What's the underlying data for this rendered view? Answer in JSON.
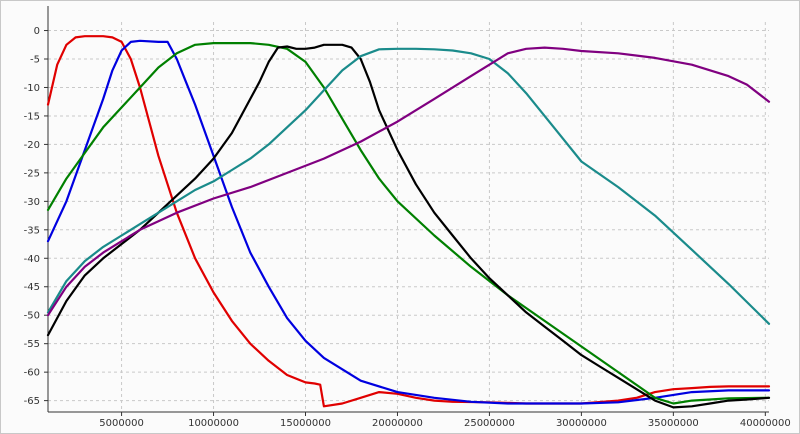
{
  "chart_data": {
    "type": "line",
    "title": "",
    "xlabel": "",
    "ylabel": "",
    "xlim": [
      1000000,
      40200000
    ],
    "ylim": [
      -67,
      1.5
    ],
    "grid": true,
    "legend": "none",
    "x_ticks": [
      5000000,
      10000000,
      15000000,
      20000000,
      25000000,
      30000000,
      35000000,
      40000000
    ],
    "x_tick_labels": [
      "5000000",
      "10000000",
      "15000000",
      "20000000",
      "25000000",
      "30000000",
      "35000000",
      "40000000"
    ],
    "y_ticks": [
      0,
      -5,
      -10,
      -15,
      -20,
      -25,
      -30,
      -35,
      -40,
      -45,
      -50,
      -55,
      -60,
      -65
    ],
    "y_tick_labels": [
      "0",
      "-5",
      "-10",
      "-15",
      "-20",
      "-25",
      "-30",
      "-35",
      "-40",
      "-45",
      "-50",
      "-55",
      "-60",
      "-65"
    ],
    "series": [
      {
        "color": "#e00000",
        "x": [
          1000000,
          1500000,
          2000000,
          2500000,
          3000000,
          3500000,
          4000000,
          4500000,
          5000000,
          5500000,
          6000000,
          6500000,
          7000000,
          7500000,
          8000000,
          9000000,
          10000000,
          11000000,
          12000000,
          13000000,
          14000000,
          15000000,
          15500000,
          15800000,
          16000000,
          17000000,
          18000000,
          19000000,
          20000000,
          21000000,
          22000000,
          23000000,
          25000000,
          27000000,
          30000000,
          32000000,
          33000000,
          34000000,
          35000000,
          36000000,
          37000000,
          38000000,
          39000000,
          40200000
        ],
        "y": [
          -13,
          -6,
          -2.5,
          -1.2,
          -1,
          -1,
          -1,
          -1.2,
          -2,
          -5,
          -10,
          -16,
          -22,
          -27,
          -32,
          -40,
          -46,
          -51,
          -55,
          -58,
          -60.5,
          -61.8,
          -62,
          -62.2,
          -66,
          -65.5,
          -64.5,
          -63.5,
          -63.8,
          -64.5,
          -65,
          -65.2,
          -65.3,
          -65.5,
          -65.5,
          -65,
          -64.5,
          -63.5,
          -63,
          -62.8,
          -62.6,
          -62.5,
          -62.5,
          -62.5
        ]
      },
      {
        "color": "#0000e0",
        "x": [
          1000000,
          2000000,
          3000000,
          4000000,
          4500000,
          5000000,
          5500000,
          6000000,
          7000000,
          7500000,
          8000000,
          8500000,
          9000000,
          10000000,
          11000000,
          12000000,
          13000000,
          14000000,
          15000000,
          16000000,
          17000000,
          18000000,
          20000000,
          22000000,
          24000000,
          26000000,
          28000000,
          30000000,
          32000000,
          34000000,
          36000000,
          38000000,
          40200000
        ],
        "y": [
          -37,
          -30,
          -21,
          -12,
          -7,
          -3.5,
          -2,
          -1.8,
          -2,
          -2,
          -5,
          -9,
          -13,
          -22,
          -31,
          -39,
          -45,
          -50.5,
          -54.5,
          -57.5,
          -59.5,
          -61.5,
          -63.5,
          -64.5,
          -65.2,
          -65.5,
          -65.5,
          -65.5,
          -65.3,
          -64.5,
          -63.5,
          -63.2,
          -63.2
        ]
      },
      {
        "color": "#008000",
        "x": [
          1000000,
          2000000,
          3000000,
          4000000,
          5000000,
          6000000,
          7000000,
          8000000,
          9000000,
          10000000,
          11000000,
          12000000,
          13000000,
          14000000,
          15000000,
          16000000,
          17000000,
          18000000,
          19000000,
          20000000,
          22000000,
          24000000,
          26000000,
          28000000,
          30000000,
          32000000,
          34000000,
          35000000,
          36000000,
          37000000,
          38000000,
          40200000
        ],
        "y": [
          -31.5,
          -26,
          -21.5,
          -17,
          -13.5,
          -10,
          -6.5,
          -4,
          -2.5,
          -2.2,
          -2.2,
          -2.2,
          -2.5,
          -3.2,
          -5.5,
          -10,
          -15.5,
          -21,
          -26,
          -30,
          -36,
          -41.5,
          -46.5,
          -51,
          -55.5,
          -60,
          -64.5,
          -65.5,
          -65,
          -64.8,
          -64.6,
          -64.5
        ]
      },
      {
        "color": "#000000",
        "x": [
          1000000,
          2000000,
          3000000,
          4000000,
          5000000,
          6000000,
          7000000,
          8000000,
          9000000,
          10000000,
          11000000,
          12000000,
          12500000,
          13000000,
          13500000,
          14000000,
          14500000,
          15000000,
          15500000,
          16000000,
          17000000,
          17500000,
          18000000,
          18500000,
          19000000,
          20000000,
          21000000,
          22000000,
          23000000,
          24000000,
          25000000,
          26000000,
          27000000,
          28000000,
          29000000,
          30000000,
          31000000,
          32000000,
          33000000,
          34000000,
          35000000,
          36000000,
          37000000,
          38000000,
          39000000,
          40200000
        ],
        "y": [
          -53.5,
          -47.5,
          -43,
          -40,
          -37.5,
          -35,
          -32,
          -29,
          -26,
          -22.5,
          -18,
          -12,
          -9,
          -5.5,
          -3,
          -2.8,
          -3.2,
          -3.2,
          -3,
          -2.5,
          -2.5,
          -3,
          -5,
          -9,
          -14,
          -21,
          -27,
          -32,
          -36,
          -40,
          -43.5,
          -46.5,
          -49.5,
          -52,
          -54.5,
          -57,
          -59,
          -61,
          -63,
          -65,
          -66.2,
          -66,
          -65.5,
          -65,
          -64.8,
          -64.5
        ]
      },
      {
        "color": "#1a8b8b",
        "x": [
          1000000,
          2000000,
          3000000,
          4000000,
          5000000,
          6000000,
          7000000,
          8000000,
          9000000,
          10000000,
          11000000,
          12000000,
          13000000,
          14000000,
          15000000,
          16000000,
          17000000,
          18000000,
          19000000,
          20000000,
          21000000,
          22000000,
          23000000,
          24000000,
          25000000,
          26000000,
          27000000,
          28000000,
          29000000,
          30000000,
          32000000,
          34000000,
          36000000,
          38000000,
          40200000
        ],
        "y": [
          -49.5,
          -44,
          -40.5,
          -38,
          -36,
          -34,
          -32,
          -30,
          -28,
          -26.5,
          -24.5,
          -22.5,
          -20,
          -17,
          -14,
          -10.5,
          -7,
          -4.5,
          -3.3,
          -3.2,
          -3.2,
          -3.3,
          -3.5,
          -4,
          -5,
          -7.5,
          -11,
          -15,
          -19,
          -23,
          -27.5,
          -32.5,
          -38.5,
          -44.5,
          -51.5
        ]
      },
      {
        "color": "#800080",
        "x": [
          1000000,
          2000000,
          3000000,
          4000000,
          5000000,
          6000000,
          7000000,
          8000000,
          10000000,
          12000000,
          14000000,
          16000000,
          18000000,
          20000000,
          22000000,
          24000000,
          25000000,
          26000000,
          27000000,
          28000000,
          29000000,
          30000000,
          32000000,
          34000000,
          36000000,
          38000000,
          39000000,
          40200000
        ],
        "y": [
          -50,
          -45,
          -41.5,
          -39,
          -37,
          -35,
          -33.5,
          -32,
          -29.5,
          -27.5,
          -25,
          -22.5,
          -19.5,
          -16,
          -12,
          -8,
          -6,
          -4,
          -3.2,
          -3,
          -3.2,
          -3.6,
          -4,
          -4.8,
          -6,
          -8,
          -9.5,
          -12.5
        ]
      }
    ]
  }
}
